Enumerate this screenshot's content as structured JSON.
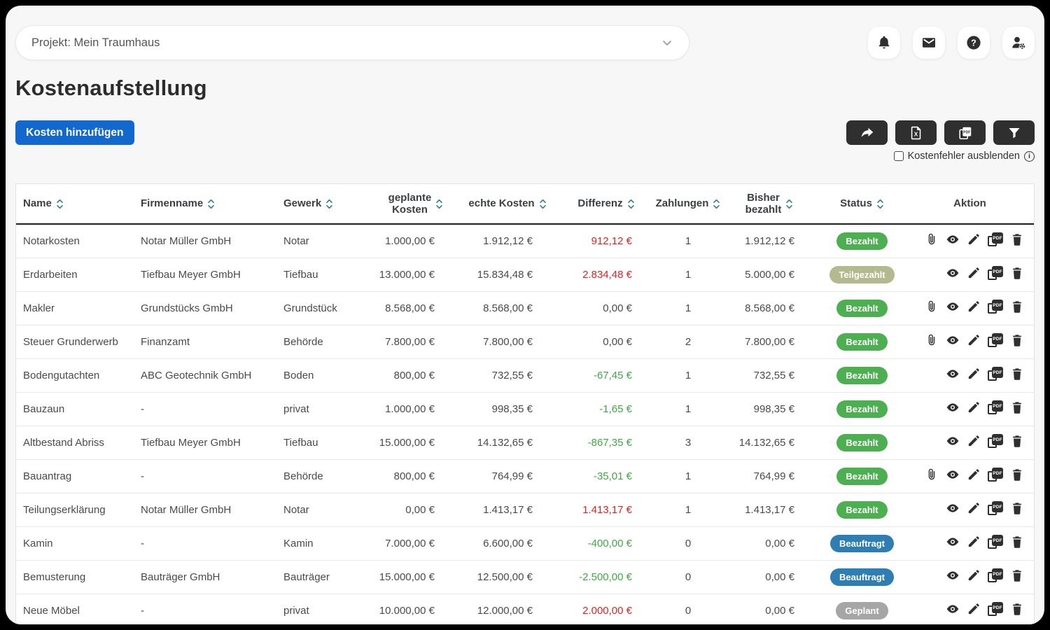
{
  "topbar": {
    "project_label": "Projekt: Mein Traumhaus",
    "icons": [
      "notifications",
      "messages",
      "help",
      "account-settings"
    ]
  },
  "header": {
    "title": "Kostenaufstellung",
    "add_button": "Kosten hinzufügen"
  },
  "toolbar": {
    "buttons": [
      "share",
      "export-excel",
      "export-pdf",
      "filter"
    ],
    "hide_errors_label": "Kostenfehler ausblenden",
    "hide_errors_checked": false
  },
  "colors": {
    "accent_blue": "#1268cd",
    "dark": "#2f2f2f",
    "sort_icon": "#2f7b8f",
    "status": {
      "paid": "#4caf50",
      "partial": "#b5b98e",
      "ordered": "#2e7eb3",
      "planned": "#a6a6a6"
    },
    "diff": {
      "red": "#df2222",
      "green": "#3fa844",
      "neutral": "#4a4a4a"
    }
  },
  "table": {
    "columns": [
      {
        "label": "Name",
        "sortable": true,
        "align": "left"
      },
      {
        "label": "Firmenname",
        "sortable": true,
        "align": "left"
      },
      {
        "label": "Gewerk",
        "sortable": true,
        "align": "left"
      },
      {
        "label": "geplante\nKosten",
        "sortable": true,
        "align": "right"
      },
      {
        "label": "echte Kosten",
        "sortable": true,
        "align": "right"
      },
      {
        "label": "Differenz",
        "sortable": true,
        "align": "right"
      },
      {
        "label": "Zahlungen",
        "sortable": true,
        "align": "center"
      },
      {
        "label": "Bisher\nbezahlt",
        "sortable": true,
        "align": "right"
      },
      {
        "label": "Status",
        "sortable": true,
        "align": "center"
      },
      {
        "label": "Aktion",
        "sortable": false,
        "align": "center"
      }
    ],
    "rows": [
      {
        "name": "Notarkosten",
        "firma": "Notar Müller GmbH",
        "gewerk": "Notar",
        "geplant": "1.000,00 €",
        "echt": "1.912,12 €",
        "differenz": "912,12 €",
        "diff_color": "red",
        "zahlungen": "1",
        "bezahlt": "1.912,12 €",
        "status": "Bezahlt",
        "status_type": "paid",
        "paperclip": true
      },
      {
        "name": "Erdarbeiten",
        "firma": "Tiefbau Meyer GmbH",
        "gewerk": "Tiefbau",
        "geplant": "13.000,00 €",
        "echt": "15.834,48 €",
        "differenz": "2.834,48 €",
        "diff_color": "red",
        "zahlungen": "1",
        "bezahlt": "5.000,00 €",
        "status": "Teilgezahlt",
        "status_type": "partial",
        "paperclip": false
      },
      {
        "name": "Makler",
        "firma": "Grundstücks GmbH",
        "gewerk": "Grundstück",
        "geplant": "8.568,00 €",
        "echt": "8.568,00 €",
        "differenz": "0,00 €",
        "diff_color": "neutral",
        "zahlungen": "1",
        "bezahlt": "8.568,00 €",
        "status": "Bezahlt",
        "status_type": "paid",
        "paperclip": true
      },
      {
        "name": "Steuer Grunderwerb",
        "firma": "Finanzamt",
        "gewerk": "Behörde",
        "geplant": "7.800,00 €",
        "echt": "7.800,00 €",
        "differenz": "0,00 €",
        "diff_color": "neutral",
        "zahlungen": "2",
        "bezahlt": "7.800,00 €",
        "status": "Bezahlt",
        "status_type": "paid",
        "paperclip": true
      },
      {
        "name": "Bodengutachten",
        "firma": "ABC Geotechnik GmbH",
        "gewerk": "Boden",
        "geplant": "800,00 €",
        "echt": "732,55 €",
        "differenz": "-67,45 €",
        "diff_color": "green",
        "zahlungen": "1",
        "bezahlt": "732,55 €",
        "status": "Bezahlt",
        "status_type": "paid",
        "paperclip": false
      },
      {
        "name": "Bauzaun",
        "firma": "-",
        "gewerk": "privat",
        "geplant": "1.000,00 €",
        "echt": "998,35 €",
        "differenz": "-1,65 €",
        "diff_color": "green",
        "zahlungen": "1",
        "bezahlt": "998,35 €",
        "status": "Bezahlt",
        "status_type": "paid",
        "paperclip": false
      },
      {
        "name": "Altbestand Abriss",
        "firma": "Tiefbau Meyer GmbH",
        "gewerk": "Tiefbau",
        "geplant": "15.000,00 €",
        "echt": "14.132,65 €",
        "differenz": "-867,35 €",
        "diff_color": "green",
        "zahlungen": "3",
        "bezahlt": "14.132,65 €",
        "status": "Bezahlt",
        "status_type": "paid",
        "paperclip": false
      },
      {
        "name": "Bauantrag",
        "firma": "-",
        "gewerk": "Behörde",
        "geplant": "800,00 €",
        "echt": "764,99 €",
        "differenz": "-35,01 €",
        "diff_color": "green",
        "zahlungen": "1",
        "bezahlt": "764,99 €",
        "status": "Bezahlt",
        "status_type": "paid",
        "paperclip": true
      },
      {
        "name": "Teilungserklärung",
        "firma": "Notar Müller GmbH",
        "gewerk": "Notar",
        "geplant": "0,00 €",
        "echt": "1.413,17 €",
        "differenz": "1.413,17 €",
        "diff_color": "red",
        "zahlungen": "1",
        "bezahlt": "1.413,17 €",
        "status": "Bezahlt",
        "status_type": "paid",
        "paperclip": false
      },
      {
        "name": "Kamin",
        "firma": "-",
        "gewerk": "Kamin",
        "geplant": "7.000,00 €",
        "echt": "6.600,00 €",
        "differenz": "-400,00 €",
        "diff_color": "green",
        "zahlungen": "0",
        "bezahlt": "0,00 €",
        "status": "Beauftragt",
        "status_type": "ordered",
        "paperclip": false
      },
      {
        "name": "Bemusterung",
        "firma": "Bauträger GmbH",
        "gewerk": "Bauträger",
        "geplant": "15.000,00 €",
        "echt": "12.500,00 €",
        "differenz": "-2.500,00 €",
        "diff_color": "green",
        "zahlungen": "0",
        "bezahlt": "0,00 €",
        "status": "Beauftragt",
        "status_type": "ordered",
        "paperclip": false
      },
      {
        "name": "Neue Möbel",
        "firma": "-",
        "gewerk": "privat",
        "geplant": "10.000,00 €",
        "echt": "12.000,00 €",
        "differenz": "2.000,00 €",
        "diff_color": "red",
        "zahlungen": "0",
        "bezahlt": "0,00 €",
        "status": "Geplant",
        "status_type": "planned",
        "paperclip": false
      }
    ]
  }
}
